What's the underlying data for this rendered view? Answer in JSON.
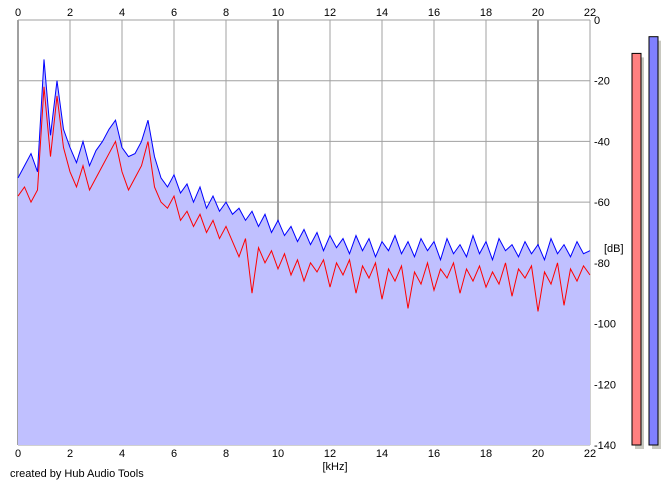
{
  "chart_data": {
    "type": "line",
    "xlabel": "[kHz]",
    "ylabel": "[dB]",
    "xlim": [
      0,
      22
    ],
    "ylim": [
      -140,
      0
    ],
    "x_ticks": [
      "0",
      "2",
      "4",
      "6",
      "8",
      "10",
      "12",
      "14",
      "16",
      "18",
      "20",
      "22"
    ],
    "y_ticks": [
      "0",
      "-20",
      "-40",
      "-60",
      "-80",
      "-100",
      "-120",
      "-140"
    ],
    "grid": true,
    "x_start": 0,
    "x_step": 0.25,
    "series": [
      {
        "color": "#0000ff",
        "fill": "#c0c0ff",
        "values": [
          -52,
          -48,
          -44,
          -50,
          -13,
          -38,
          -20,
          -36,
          -42,
          -47,
          -40,
          -48,
          -43,
          -40,
          -36,
          -33,
          -42,
          -45,
          -44,
          -40,
          -33,
          -45,
          -52,
          -55,
          -51,
          -57,
          -54,
          -60,
          -55,
          -62,
          -58,
          -63,
          -60,
          -64,
          -62,
          -66,
          -63,
          -68,
          -64,
          -70,
          -66,
          -71,
          -68,
          -73,
          -69,
          -74,
          -70,
          -76,
          -71,
          -75,
          -72,
          -77,
          -71,
          -76,
          -72,
          -78,
          -73,
          -76,
          -71,
          -77,
          -73,
          -78,
          -72,
          -76,
          -73,
          -79,
          -72,
          -77,
          -74,
          -78,
          -71,
          -77,
          -73,
          -79,
          -72,
          -76,
          -74,
          -78,
          -73,
          -77,
          -74,
          -79,
          -72,
          -77,
          -74,
          -78,
          -73,
          -77,
          -76
        ]
      },
      {
        "color": "#ff0000",
        "values": [
          -58,
          -55,
          -60,
          -56,
          -22,
          -45,
          -25,
          -42,
          -50,
          -55,
          -48,
          -56,
          -52,
          -48,
          -44,
          -40,
          -50,
          -56,
          -52,
          -48,
          -40,
          -55,
          -60,
          -62,
          -58,
          -66,
          -63,
          -68,
          -64,
          -70,
          -66,
          -72,
          -68,
          -73,
          -78,
          -72,
          -90,
          -75,
          -80,
          -76,
          -82,
          -77,
          -84,
          -79,
          -86,
          -80,
          -83,
          -79,
          -88,
          -80,
          -84,
          -79,
          -90,
          -81,
          -85,
          -80,
          -92,
          -82,
          -86,
          -81,
          -95,
          -83,
          -87,
          -80,
          -89,
          -82,
          -85,
          -80,
          -90,
          -82,
          -86,
          -81,
          -88,
          -83,
          -87,
          -80,
          -91,
          -82,
          -85,
          -81,
          -96,
          -83,
          -87,
          -80,
          -94,
          -82,
          -86,
          -81,
          -84
        ]
      }
    ],
    "level_meters": [
      {
        "color": "#ff8080",
        "value_db": -11
      },
      {
        "color": "#8080ff",
        "value_db": -5.5
      }
    ]
  },
  "footer": {
    "credit": "created by Hub Audio Tools"
  }
}
